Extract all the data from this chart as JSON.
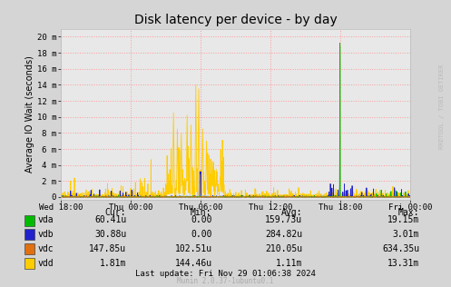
{
  "title": "Disk latency per device - by day",
  "ylabel": "Average IO Wait (seconds)",
  "background_color": "#d5d5d5",
  "plot_bg_color": "#e8e8e8",
  "x_ticks_labels": [
    "Wed 18:00",
    "Thu 00:00",
    "Thu 06:00",
    "Thu 12:00",
    "Thu 18:00",
    "Fri 00:00"
  ],
  "x_ticks_pos": [
    0,
    360,
    720,
    1080,
    1440,
    1800
  ],
  "ytick_vals": [
    0,
    2,
    4,
    6,
    8,
    10,
    12,
    14,
    16,
    18,
    20
  ],
  "ytick_labels": [
    "0",
    "2 m",
    "4 m",
    "6 m",
    "8 m",
    "10 m",
    "12 m",
    "14 m",
    "16 m",
    "18 m",
    "20 m"
  ],
  "series_colors": [
    "#00bb00",
    "#2222cc",
    "#e07010",
    "#ffcc00"
  ],
  "series_names": [
    "vda",
    "vdb",
    "vdc",
    "vdd"
  ],
  "legend_items": [
    {
      "name": "vda",
      "cur": "60.41u",
      "min": "0.00",
      "avg": "159.73u",
      "max": "19.15m",
      "color": "#00bb00"
    },
    {
      "name": "vdb",
      "cur": "30.88u",
      "min": "0.00",
      "avg": "284.82u",
      "max": "3.01m",
      "color": "#2222cc"
    },
    {
      "name": "vdc",
      "cur": "147.85u",
      "min": "102.51u",
      "avg": "210.05u",
      "max": "634.35u",
      "color": "#e07010"
    },
    {
      "name": "vdd",
      "cur": "1.81m",
      "min": "144.46u",
      "avg": "1.11m",
      "max": "13.31m",
      "color": "#ffcc00"
    }
  ],
  "footer": "Last update: Fri Nov 29 01:06:38 2024",
  "munin_version": "Munin 2.0.37-1ubuntu0.1",
  "right_label": "RRDTOOL / TOBI OETIKER",
  "total_points": 1800,
  "n_points": 1800
}
